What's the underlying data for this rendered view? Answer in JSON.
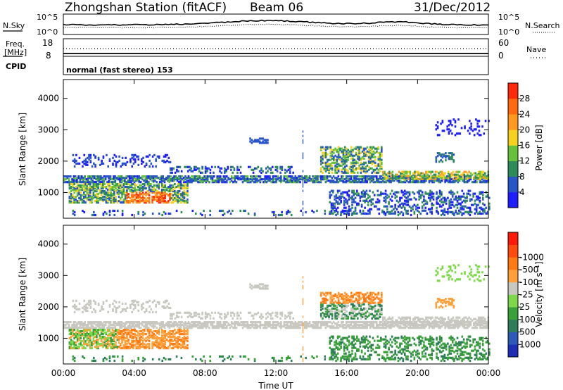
{
  "header": {
    "station": "Zhongshan Station (fitACF)",
    "beam": "Beam 06",
    "date": "31/Dec/2012"
  },
  "noise_panel": {
    "left_label": "N.Sky",
    "right_label": "N.Search",
    "left_ticks": [
      "10^5",
      "10^0"
    ],
    "right_ticks": [
      "10^5",
      "10^0"
    ]
  },
  "freq_panel": {
    "left_label_1": "Freq.",
    "left_label_2": "[MHz]",
    "right_label": "Nave",
    "left_ticks": [
      "18",
      "8"
    ],
    "right_ticks": [
      "60",
      "0"
    ]
  },
  "cpid": {
    "label": "CPID",
    "value": "normal (fast stereo) 153"
  },
  "chart_data": [
    {
      "type": "heatmap",
      "panel": "power",
      "ylabel": "Slant Range [km]",
      "xlabel": "",
      "x_ticks": [
        "00:00",
        "04:00",
        "08:00",
        "12:00",
        "16:00",
        "20:00",
        "00:00"
      ],
      "y_ticks": [
        1000,
        2000,
        3000,
        4000
      ],
      "ylim": [
        180,
        4600
      ],
      "colorbar": {
        "label": "Power [dB]",
        "tick_labels": [
          "4",
          "8",
          "12",
          "16",
          "20",
          "24",
          "28"
        ],
        "colors": [
          "#1e1eff",
          "#2a55c8",
          "#2e8c5a",
          "#66c23a",
          "#f5d21f",
          "#ff9a1f",
          "#ff6a10",
          "#ff2a0a"
        ]
      }
    },
    {
      "type": "heatmap",
      "panel": "velocity",
      "ylabel": "Slant Range [km]",
      "xlabel": "Time UT",
      "x_ticks": [
        "00:00",
        "04:00",
        "08:00",
        "12:00",
        "16:00",
        "20:00",
        "00:00"
      ],
      "y_ticks": [
        1000,
        2000,
        3000,
        4000
      ],
      "ylim": [
        180,
        4600
      ],
      "colorbar": {
        "label": "Velocity [m s⁻¹]",
        "tick_labels": [
          "1000",
          "500",
          "100",
          "25",
          "-25",
          "-100",
          "-500",
          "-1000"
        ],
        "colors": [
          "#1e2fb4",
          "#2d5ab8",
          "#2e7d5a",
          "#3aa03a",
          "#7ed94a",
          "#c8c8c0",
          "#ffa03a",
          "#ff7a14",
          "#ff4a10",
          "#ff1a0a"
        ]
      }
    }
  ]
}
